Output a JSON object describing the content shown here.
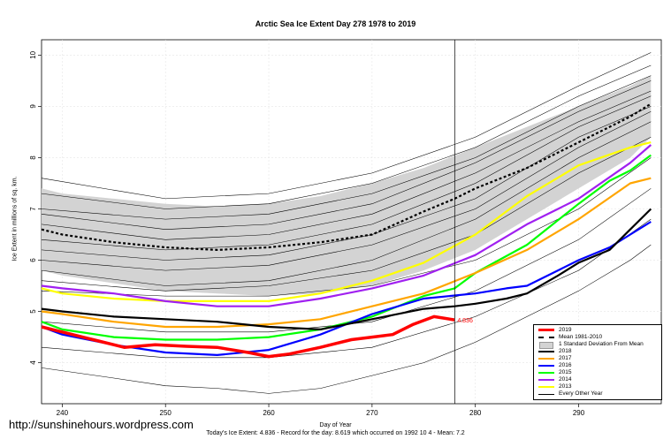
{
  "chart_data": {
    "type": "line",
    "title": "Arctic Sea Ice Extent Day 278 1978 to 2019",
    "xlabel": "Day of Year",
    "ylabel": "Ice Extent in millions of sq. km.",
    "xlim": [
      238,
      298
    ],
    "ylim": [
      3.2,
      10.3
    ],
    "xticks": [
      240,
      250,
      260,
      270,
      280,
      290
    ],
    "yticks": [
      4,
      5,
      6,
      7,
      8,
      9,
      10
    ],
    "grid": true,
    "vertical_marker_day": 278,
    "marker_label": "4.836",
    "marker_value": 4.836,
    "legend_position": "bottom-right",
    "std_band": {
      "name": "1 Standard Deviation From Mean",
      "color": "#d3d3d3",
      "x": [
        238,
        240,
        245,
        250,
        255,
        260,
        265,
        270,
        275,
        280,
        285,
        290,
        295,
        297
      ],
      "upper": [
        7.4,
        7.3,
        7.2,
        7.1,
        7.05,
        7.1,
        7.25,
        7.5,
        7.8,
        8.2,
        8.6,
        9.0,
        9.4,
        9.6
      ],
      "lower": [
        5.8,
        5.7,
        5.55,
        5.4,
        5.35,
        5.3,
        5.35,
        5.5,
        5.8,
        6.2,
        6.8,
        7.4,
        8.0,
        8.4
      ]
    },
    "mean": {
      "name": "Mean 1981-2010",
      "color": "#000000",
      "x": [
        238,
        240,
        245,
        250,
        255,
        260,
        265,
        270,
        275,
        278,
        280,
        285,
        290,
        295,
        297
      ],
      "y": [
        6.6,
        6.5,
        6.35,
        6.25,
        6.2,
        6.25,
        6.35,
        6.5,
        6.95,
        7.2,
        7.4,
        7.8,
        8.3,
        8.8,
        9.05
      ]
    },
    "series": [
      {
        "name": "2019",
        "color": "#ff0000",
        "width": 3.5,
        "x": [
          238,
          240,
          243,
          246,
          249,
          252,
          255,
          258,
          260,
          262,
          265,
          268,
          270,
          272,
          274,
          276,
          278
        ],
        "y": [
          4.7,
          4.6,
          4.45,
          4.3,
          4.35,
          4.32,
          4.3,
          4.2,
          4.12,
          4.17,
          4.3,
          4.45,
          4.5,
          4.55,
          4.75,
          4.9,
          4.836
        ]
      },
      {
        "name": "2018",
        "color": "#000000",
        "width": 2.2,
        "x": [
          238,
          240,
          245,
          250,
          255,
          260,
          265,
          270,
          275,
          278,
          280,
          283,
          285,
          288,
          290,
          293,
          295,
          297
        ],
        "y": [
          5.05,
          5.0,
          4.9,
          4.85,
          4.8,
          4.7,
          4.65,
          4.85,
          5.05,
          5.1,
          5.15,
          5.25,
          5.35,
          5.7,
          5.95,
          6.2,
          6.6,
          7.0
        ]
      },
      {
        "name": "2017",
        "color": "#ffa500",
        "width": 2.2,
        "x": [
          238,
          240,
          245,
          250,
          255,
          260,
          265,
          270,
          275,
          280,
          285,
          290,
          295,
          297
        ],
        "y": [
          5.0,
          4.95,
          4.8,
          4.7,
          4.7,
          4.75,
          4.85,
          5.1,
          5.35,
          5.75,
          6.2,
          6.8,
          7.5,
          7.6
        ]
      },
      {
        "name": "2016",
        "color": "#0000ff",
        "width": 2.2,
        "x": [
          238,
          240,
          245,
          250,
          255,
          260,
          265,
          270,
          275,
          280,
          283,
          285,
          288,
          290,
          293,
          295,
          297
        ],
        "y": [
          4.7,
          4.55,
          4.35,
          4.2,
          4.15,
          4.25,
          4.55,
          4.95,
          5.25,
          5.35,
          5.45,
          5.5,
          5.8,
          6.0,
          6.25,
          6.5,
          6.75
        ]
      },
      {
        "name": "2015",
        "color": "#00ff00",
        "width": 2.2,
        "x": [
          238,
          240,
          245,
          250,
          255,
          260,
          265,
          270,
          275,
          278,
          280,
          285,
          290,
          293,
          295,
          297
        ],
        "y": [
          4.8,
          4.65,
          4.5,
          4.45,
          4.45,
          4.5,
          4.65,
          4.9,
          5.3,
          5.45,
          5.75,
          6.3,
          7.1,
          7.55,
          7.75,
          8.05
        ]
      },
      {
        "name": "2014",
        "color": "#a020f0",
        "width": 2.2,
        "x": [
          238,
          240,
          245,
          250,
          255,
          260,
          265,
          270,
          275,
          280,
          285,
          290,
          295,
          297
        ],
        "y": [
          5.5,
          5.45,
          5.35,
          5.2,
          5.1,
          5.1,
          5.25,
          5.45,
          5.7,
          6.1,
          6.7,
          7.2,
          7.9,
          8.25
        ]
      },
      {
        "name": "2013",
        "color": "#ffff00",
        "width": 2.2,
        "x": [
          238,
          240,
          245,
          250,
          255,
          260,
          265,
          270,
          275,
          280,
          285,
          290,
          295,
          297
        ],
        "y": [
          5.45,
          5.35,
          5.25,
          5.2,
          5.2,
          5.2,
          5.35,
          5.6,
          5.95,
          6.5,
          7.25,
          7.85,
          8.2,
          8.3
        ]
      }
    ],
    "other_years_label": "Every Other Year",
    "other_years": [
      {
        "x": [
          238,
          250,
          260,
          270,
          280,
          290,
          297
        ],
        "y": [
          7.6,
          7.2,
          7.3,
          7.7,
          8.4,
          9.4,
          10.05
        ]
      },
      {
        "x": [
          238,
          250,
          260,
          270,
          280,
          290,
          297
        ],
        "y": [
          7.3,
          7.0,
          7.1,
          7.5,
          8.2,
          9.2,
          9.8
        ]
      },
      {
        "x": [
          238,
          250,
          260,
          270,
          280,
          290,
          297
        ],
        "y": [
          7.0,
          6.8,
          6.9,
          7.3,
          8.0,
          9.0,
          9.6
        ]
      },
      {
        "x": [
          238,
          250,
          260,
          270,
          280,
          290,
          297
        ],
        "y": [
          6.9,
          6.6,
          6.7,
          7.1,
          7.9,
          8.9,
          9.5
        ]
      },
      {
        "x": [
          238,
          250,
          260,
          270,
          280,
          290,
          297
        ],
        "y": [
          6.7,
          6.4,
          6.5,
          6.9,
          7.7,
          8.7,
          9.3
        ]
      },
      {
        "x": [
          238,
          250,
          260,
          270,
          280,
          290,
          297
        ],
        "y": [
          6.4,
          6.2,
          6.3,
          6.7,
          7.5,
          8.6,
          9.2
        ]
      },
      {
        "x": [
          238,
          250,
          260,
          270,
          280,
          290,
          297
        ],
        "y": [
          6.2,
          6.0,
          6.1,
          6.5,
          7.2,
          8.4,
          9.0
        ]
      },
      {
        "x": [
          238,
          250,
          260,
          270,
          280,
          290,
          297
        ],
        "y": [
          6.0,
          5.8,
          5.9,
          6.3,
          7.0,
          8.2,
          8.9
        ]
      },
      {
        "x": [
          238,
          250,
          260,
          270,
          280,
          290,
          297
        ],
        "y": [
          5.8,
          5.5,
          5.6,
          6.0,
          6.8,
          8.0,
          8.7
        ]
      },
      {
        "x": [
          238,
          250,
          260,
          270,
          280,
          290,
          297
        ],
        "y": [
          5.6,
          5.4,
          5.5,
          5.8,
          6.5,
          7.7,
          8.4
        ]
      },
      {
        "x": [
          238,
          250,
          260,
          270,
          280,
          290,
          297
        ],
        "y": [
          5.4,
          5.3,
          5.3,
          5.5,
          6.0,
          7.0,
          8.0
        ]
      },
      {
        "x": [
          238,
          250,
          260,
          270,
          280,
          290,
          297
        ],
        "y": [
          4.8,
          4.6,
          4.6,
          4.8,
          5.4,
          6.4,
          7.4
        ]
      },
      {
        "x": [
          238,
          250,
          260,
          270,
          280,
          290,
          297
        ],
        "y": [
          4.3,
          4.1,
          4.1,
          4.3,
          4.9,
          5.8,
          6.8
        ]
      },
      {
        "x": [
          238,
          245,
          250,
          255,
          260,
          265,
          270,
          275,
          280,
          285,
          290,
          295,
          297
        ],
        "y": [
          3.9,
          3.7,
          3.55,
          3.5,
          3.4,
          3.5,
          3.75,
          4.0,
          4.4,
          4.9,
          5.4,
          6.0,
          6.3
        ]
      }
    ]
  },
  "watermark": "http://sunshinehours.wordpress.com",
  "footer": "Today's Ice Extent: 4.836  - Record for the day: 8.619 which occurred on 1992 10 4  - Mean: 7.2",
  "legend": {
    "items": [
      {
        "label": "2019",
        "kind": "line",
        "color": "#ff0000",
        "width": 3.5
      },
      {
        "label": "Mean 1981-2010",
        "kind": "dash",
        "color": "#000000",
        "width": 2
      },
      {
        "label": "1 Standard Deviation From Mean",
        "kind": "box",
        "color": "#d3d3d3"
      },
      {
        "label": "2018",
        "kind": "line",
        "color": "#000000",
        "width": 2
      },
      {
        "label": "2017",
        "kind": "line",
        "color": "#ffa500",
        "width": 2
      },
      {
        "label": "2016",
        "kind": "line",
        "color": "#0000ff",
        "width": 2
      },
      {
        "label": "2015",
        "kind": "line",
        "color": "#00ff00",
        "width": 2
      },
      {
        "label": "2014",
        "kind": "line",
        "color": "#a020f0",
        "width": 2
      },
      {
        "label": "2013",
        "kind": "line",
        "color": "#ffff00",
        "width": 2
      },
      {
        "label": "Every Other Year",
        "kind": "line",
        "color": "#000000",
        "width": 0.6
      }
    ]
  }
}
